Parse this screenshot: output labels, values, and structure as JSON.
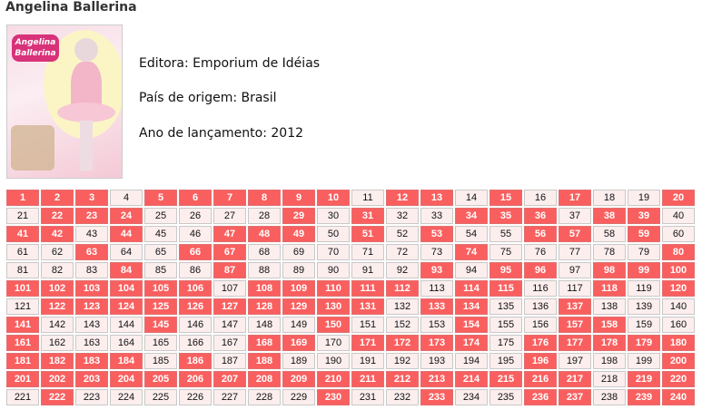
{
  "title": "Angelina Ballerina",
  "cover": {
    "logo_text": "Angelina Ballerina"
  },
  "info": {
    "publisher": "Editora: Emporium de Idéias",
    "country": "País de origem: Brasil",
    "year": "Ano de lançamento: 2012"
  },
  "colors": {
    "owned": "#fa5f5f",
    "missing": "#fdeeee"
  },
  "grid": {
    "total": 240,
    "columns": 20,
    "owned": [
      1,
      2,
      3,
      5,
      6,
      7,
      8,
      9,
      10,
      12,
      13,
      15,
      17,
      20,
      22,
      23,
      24,
      29,
      31,
      34,
      35,
      36,
      38,
      39,
      41,
      42,
      44,
      47,
      48,
      49,
      51,
      53,
      56,
      57,
      59,
      63,
      66,
      67,
      74,
      80,
      84,
      87,
      93,
      95,
      96,
      98,
      99,
      100,
      101,
      102,
      103,
      104,
      105,
      106,
      108,
      109,
      110,
      111,
      112,
      114,
      115,
      118,
      120,
      122,
      123,
      124,
      125,
      126,
      127,
      128,
      129,
      130,
      131,
      133,
      134,
      137,
      141,
      145,
      150,
      154,
      157,
      158,
      161,
      168,
      169,
      171,
      172,
      173,
      174,
      176,
      177,
      178,
      179,
      180,
      181,
      182,
      183,
      184,
      186,
      188,
      196,
      200,
      201,
      202,
      203,
      204,
      205,
      206,
      207,
      208,
      209,
      210,
      211,
      212,
      213,
      214,
      215,
      216,
      217,
      219,
      220,
      222,
      230,
      233,
      236,
      237,
      239,
      240
    ]
  }
}
